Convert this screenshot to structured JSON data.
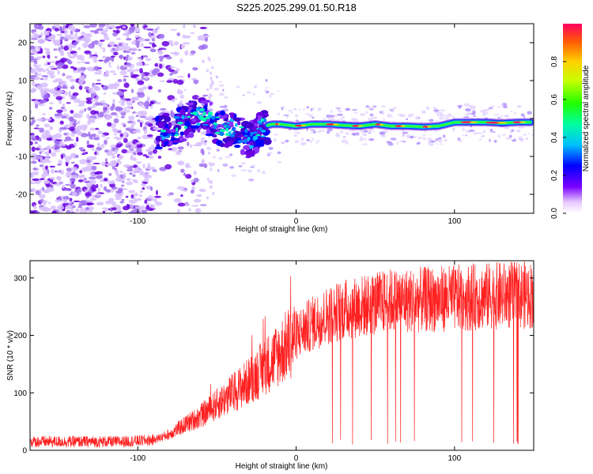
{
  "chart_data": [
    {
      "type": "heatmap",
      "title": "S225.2025.299.01.50.R18",
      "xlabel": "Height of straight line (km)",
      "ylabel": "Frequency (Hz)",
      "xlim": [
        -168,
        150
      ],
      "ylim": [
        -25,
        25
      ],
      "xticks": [
        -100,
        0,
        100
      ],
      "yticks": [
        20,
        10,
        0,
        -10,
        -20
      ],
      "colorbar": {
        "label": "Normalized spectral amplitude",
        "ticks": [
          0.0,
          0.2,
          0.4,
          0.6,
          0.8
        ],
        "range": [
          0,
          1
        ]
      },
      "signal_trace": {
        "x": [
          -85,
          -80,
          -75,
          -70,
          -65,
          -60,
          -55,
          -50,
          -45,
          -40,
          -35,
          -30,
          -25,
          -20,
          -15,
          -10,
          0,
          10,
          20,
          30,
          40,
          50,
          60,
          70,
          80,
          90,
          95,
          100,
          110,
          120,
          130,
          140,
          148
        ],
        "y": [
          -4,
          -3,
          -2,
          -1,
          0,
          1,
          0,
          -2,
          -3,
          -2,
          -4,
          -6,
          -4,
          -2,
          -1.5,
          -1.5,
          -2,
          -1.5,
          -1.5,
          -1.8,
          -2,
          -1.5,
          -2,
          -2,
          -2.2,
          -2,
          -1.5,
          -1,
          -1,
          -1,
          -1.2,
          -1,
          -1
        ]
      }
    },
    {
      "type": "line",
      "title": "",
      "xlabel": "Height of straight line (km)",
      "ylabel": "SNR (10 * v/v)",
      "xlim": [
        -168,
        150
      ],
      "ylim": [
        0,
        330
      ],
      "xticks": [
        -100,
        0,
        100
      ],
      "yticks": [
        0,
        100,
        200,
        300
      ],
      "series": [
        {
          "name": "SNR",
          "color": "#ff2020",
          "envelope_x": [
            -168,
            -140,
            -110,
            -90,
            -80,
            -70,
            -60,
            -50,
            -40,
            -30,
            -20,
            -10,
            0,
            10,
            20,
            30,
            40,
            50,
            60,
            80,
            100,
            120,
            140,
            150
          ],
          "envelope_y": [
            15,
            15,
            15,
            18,
            28,
            45,
            60,
            80,
            100,
            120,
            145,
            170,
            200,
            220,
            235,
            245,
            250,
            255,
            260,
            262,
            265,
            268,
            270,
            270
          ]
        }
      ]
    }
  ]
}
